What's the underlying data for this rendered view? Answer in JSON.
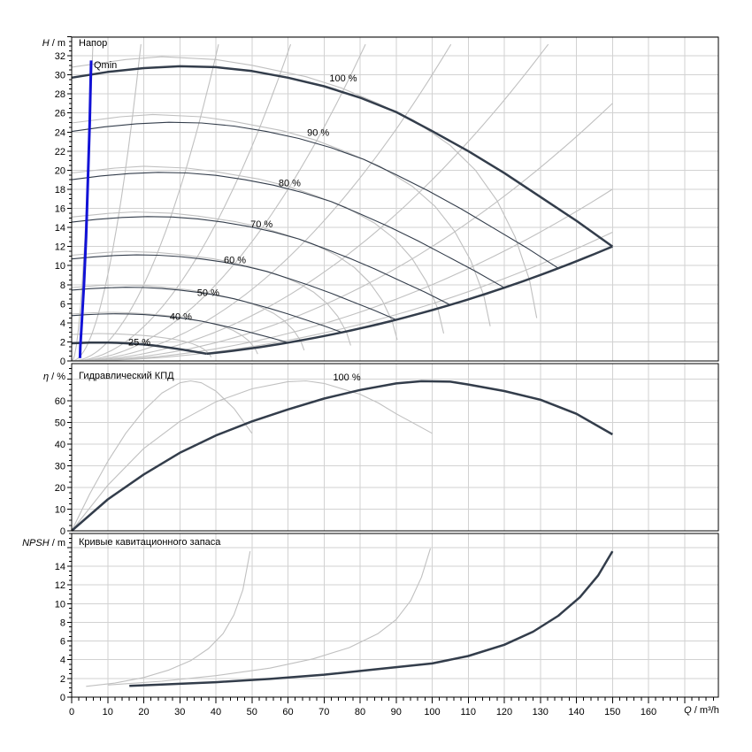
{
  "colors": {
    "selected_curve": "#333d4b",
    "reference_curve": "#c0c0c0",
    "grid": "#d2d2d2",
    "frame": "#000000",
    "qmin_line": "#1212d6",
    "curve_label": "#44546a",
    "tick_label": "#000000",
    "background": "#ffffff"
  },
  "chart": {
    "x_axis": {
      "label_symbol": "Q",
      "label_unit": " / m³/h",
      "tick_labels": [
        0,
        10,
        20,
        30,
        40,
        50,
        60,
        70,
        80,
        90,
        100,
        110,
        120,
        130,
        140,
        150,
        160
      ],
      "range": [
        0,
        179
      ],
      "grid_step": 10,
      "major_step": 10,
      "minor_step": 2
    }
  },
  "chart_data": [
    {
      "type": "line",
      "panel": "head",
      "title": "Напор",
      "ylabel_symbol": "H",
      "ylabel_unit": " / m",
      "ylim": [
        0,
        34
      ],
      "ytick_labels": [
        0,
        2,
        4,
        6,
        8,
        10,
        12,
        14,
        16,
        18,
        20,
        22,
        24,
        26,
        28,
        30,
        32
      ],
      "ymajor_step": 2,
      "yminor_step": 0.5,
      "grid": true,
      "speed_percent": [
        100,
        90,
        80,
        70,
        60,
        50,
        40,
        25
      ],
      "base_curve_100": [
        [
          0,
          29.7
        ],
        [
          10,
          30.3
        ],
        [
          20,
          30.7
        ],
        [
          30,
          30.9
        ],
        [
          40,
          30.8
        ],
        [
          50,
          30.4
        ],
        [
          60,
          29.7
        ],
        [
          70,
          28.8
        ],
        [
          80,
          27.6
        ],
        [
          90,
          26.1
        ],
        [
          100,
          24.1
        ],
        [
          110,
          22.0
        ],
        [
          120,
          19.7
        ],
        [
          130,
          17.2
        ],
        [
          140,
          14.7
        ],
        [
          150,
          12.0
        ]
      ],
      "envelope": {
        "tip_point": [
          150,
          12
        ],
        "min_speed": 0.25,
        "min_speed_end_q": 37.5
      },
      "curve_labels": [
        {
          "text": "100 %",
          "q": 71.5,
          "v": 29.7
        },
        {
          "text": "90 %",
          "q": 65.3,
          "v": 24.0
        },
        {
          "text": "80 %",
          "q": 57.4,
          "v": 18.7
        },
        {
          "text": "70 %",
          "q": 49.6,
          "v": 14.4
        },
        {
          "text": "60 %",
          "q": 42.2,
          "v": 10.6
        },
        {
          "text": "50 %",
          "q": 34.8,
          "v": 7.2
        },
        {
          "text": "40 %",
          "q": 27.2,
          "v": 4.7
        },
        {
          "text": "25 %",
          "q": 15.7,
          "v": 2.0
        }
      ],
      "qmin": {
        "label": "Qmin",
        "points": [
          [
            5.4,
            31.5
          ],
          [
            5.0,
            25.0
          ],
          [
            4.6,
            20.0
          ],
          [
            4.0,
            13.0
          ],
          [
            3.4,
            8.0
          ],
          [
            2.8,
            4.0
          ],
          [
            2.4,
            1.5
          ],
          [
            2.3,
            0.3
          ]
        ]
      },
      "reference_parabolas_k": [
        0.96,
        0.09,
        0.02,
        0.009,
        0.005,
        0.003,
        0.0019,
        0.0012,
        0.0008,
        0.0006
      ],
      "reference_family": {
        "speeds": [
          1.0,
          0.9,
          0.8,
          0.7,
          0.6,
          0.5,
          0.4,
          0.3
        ],
        "base": [
          [
            0,
            30.8
          ],
          [
            15,
            31.6
          ],
          [
            25,
            31.9
          ],
          [
            40,
            31.6
          ],
          [
            50,
            31.0
          ],
          [
            65,
            29.8
          ],
          [
            75,
            28.6
          ],
          [
            85,
            27.0
          ],
          [
            95,
            25.2
          ],
          [
            105,
            22.6
          ],
          [
            112,
            20.0
          ],
          [
            118,
            16.8
          ],
          [
            123,
            13.0
          ],
          [
            127,
            8.5
          ],
          [
            129,
            4.5
          ]
        ]
      }
    },
    {
      "type": "line",
      "panel": "efficiency",
      "title": "Гидравлический КПД",
      "ylabel_symbol": "η",
      "ylabel_unit": " / %",
      "ylim": [
        0,
        77
      ],
      "ytick_labels": [
        0,
        10,
        20,
        30,
        40,
        50,
        60
      ],
      "ymajor_step": 10,
      "yminor_step": 2.5,
      "grid": true,
      "series": [
        {
          "name": "reference-1",
          "role": "reference",
          "points": [
            [
              0,
              0
            ],
            [
              5,
              17
            ],
            [
              10,
              32
            ],
            [
              15,
              45
            ],
            [
              20,
              55.5
            ],
            [
              25,
              63.5
            ],
            [
              30,
              68.3
            ],
            [
              33,
              69.2
            ],
            [
              36,
              68.3
            ],
            [
              40,
              64.5
            ],
            [
              45,
              56.5
            ],
            [
              50,
              45
            ]
          ]
        },
        {
          "name": "reference-2",
          "role": "reference",
          "points": [
            [
              0,
              0
            ],
            [
              10,
              21
            ],
            [
              20,
              38
            ],
            [
              30,
              50.5
            ],
            [
              40,
              59.5
            ],
            [
              50,
              65.5
            ],
            [
              60,
              68.8
            ],
            [
              65,
              69.2
            ],
            [
              70,
              68
            ],
            [
              80,
              63
            ],
            [
              85,
              59
            ],
            [
              90,
              54
            ],
            [
              95,
              49.5
            ],
            [
              100,
              45
            ]
          ]
        },
        {
          "name": "100 %",
          "role": "selected",
          "points": [
            [
              0,
              0
            ],
            [
              10,
              14.5
            ],
            [
              20,
              26
            ],
            [
              30,
              36
            ],
            [
              40,
              44
            ],
            [
              50,
              50.5
            ],
            [
              60,
              56
            ],
            [
              70,
              61
            ],
            [
              80,
              65
            ],
            [
              90,
              68
            ],
            [
              97,
              69
            ],
            [
              105,
              68.8
            ],
            [
              110,
              67.5
            ],
            [
              120,
              64.5
            ],
            [
              130,
              60.5
            ],
            [
              140,
              54
            ],
            [
              150,
              44.5
            ]
          ]
        }
      ],
      "curve_labels": [
        {
          "text": "100 %",
          "q": 72.5,
          "v": 71
        }
      ]
    },
    {
      "type": "line",
      "panel": "npsh",
      "title": "Кривые кавитационного запаса",
      "ylabel_symbol": "NPSH",
      "ylabel_unit": " / m",
      "ylim": [
        0,
        17.5
      ],
      "ytick_labels": [
        0,
        2,
        4,
        6,
        8,
        10,
        12,
        14
      ],
      "ymajor_step": 2,
      "yminor_step": 0.5,
      "grid": true,
      "series": [
        {
          "name": "reference-1",
          "role": "reference",
          "points": [
            [
              4,
              1.15
            ],
            [
              12,
              1.5
            ],
            [
              20,
              2.1
            ],
            [
              27,
              2.9
            ],
            [
              33,
              3.9
            ],
            [
              38,
              5.2
            ],
            [
              42,
              6.8
            ],
            [
              45,
              8.8
            ],
            [
              47.5,
              11.5
            ],
            [
              49.5,
              15.6
            ]
          ]
        },
        {
          "name": "reference-2",
          "role": "reference",
          "points": [
            [
              10,
              1.3
            ],
            [
              25,
              1.7
            ],
            [
              40,
              2.3
            ],
            [
              55,
              3.1
            ],
            [
              67,
              4.1
            ],
            [
              77,
              5.3
            ],
            [
              85,
              6.8
            ],
            [
              90,
              8.3
            ],
            [
              94,
              10.3
            ],
            [
              97,
              12.8
            ],
            [
              99.5,
              15.9
            ]
          ]
        },
        {
          "name": "selected",
          "role": "selected",
          "points": [
            [
              16,
              1.2
            ],
            [
              25,
              1.35
            ],
            [
              40,
              1.6
            ],
            [
              55,
              1.95
            ],
            [
              70,
              2.4
            ],
            [
              85,
              3.0
            ],
            [
              100,
              3.6
            ],
            [
              110,
              4.4
            ],
            [
              120,
              5.6
            ],
            [
              128,
              7.0
            ],
            [
              135,
              8.7
            ],
            [
              141,
              10.7
            ],
            [
              146,
              13.0
            ],
            [
              150,
              15.6
            ]
          ]
        }
      ],
      "curve_labels": []
    }
  ]
}
